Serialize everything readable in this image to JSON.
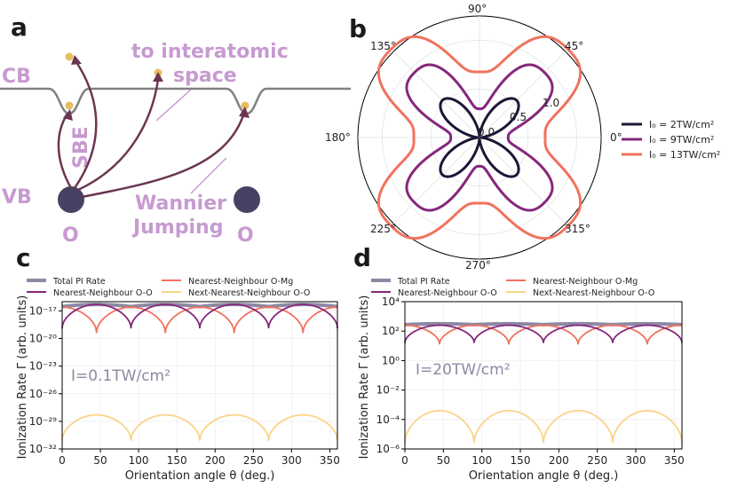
{
  "panel_a": {
    "letter": "a",
    "cb_label": "CB",
    "vb_label": "VB",
    "interatomic_label": [
      "to interatomic",
      "space"
    ],
    "sbe_label": "SBE",
    "wannier_label": [
      "Wannier",
      "Jumping"
    ],
    "o_label_left": "O",
    "o_label_right": "O",
    "colors": {
      "band": "#808080",
      "dot": "#e8bd60",
      "atom": "#474264",
      "arrow": "#6b3551",
      "annotation": "#c79ad0"
    }
  },
  "chart_data": [
    {
      "id": "b",
      "letter": "b",
      "type": "polar",
      "radial_ticks": [
        "0.0",
        "0.5",
        "1.0"
      ],
      "angle_ticks": [
        "0°",
        "45°",
        "90°",
        "135°",
        "180°",
        "225°",
        "270°",
        "315°"
      ],
      "rmax": 1.25,
      "series": [
        {
          "label": "I₀ = 2TW/cm²",
          "color": "#1c1636",
          "base": 0.28,
          "amp": 0.26
        },
        {
          "label": "I₀ = 9TW/cm²",
          "color": "#85277c",
          "base": 0.62,
          "amp": 0.36
        },
        {
          "label": "I₀ = 13TW/cm²",
          "color": "#f0725e",
          "base": 0.98,
          "amp": 0.34
        }
      ],
      "legend": [
        "I₀ = 2TW/cm²",
        "I₀ = 9TW/cm²",
        "I₀ = 13TW/cm²"
      ]
    },
    {
      "id": "c",
      "letter": "c",
      "type": "line",
      "yscale": "log",
      "xlim": [
        0,
        360
      ],
      "ylim_exp": [
        -32,
        -16
      ],
      "xticks": [
        "0",
        "50",
        "100",
        "150",
        "200",
        "250",
        "300",
        "350"
      ],
      "ytick_exps": [
        -17,
        -20,
        -23,
        -26,
        -29,
        -32
      ],
      "xlabel": "Orientation angle θ (deg.)",
      "ylabel": "Ionization Rate Γ (arb. units)",
      "annotation": "I=0.1TW/cm²",
      "legend": [
        "Total PI Rate",
        "Nearest-Neighbour O-Mg",
        "Nearest-Neighbour O-O",
        "Next-Nearest-Neighbour O-O"
      ],
      "series": [
        {
          "name": "Total PI Rate",
          "color": "#8d89a3",
          "max_exp": -16.3,
          "min_exp": -17.1
        },
        {
          "name": "Nearest-Neighbour O-Mg",
          "color": "#f0725e",
          "max_exp": -16.6,
          "min_exp": -19.4
        },
        {
          "name": "Nearest-Neighbour O-O",
          "color": "#85277c",
          "max_exp": -16.3,
          "min_exp": -18.9
        },
        {
          "name": "Next-Nearest-Neighbour O-O",
          "color": "#fbd38a",
          "max_exp": -28.3,
          "min_exp": -31.1
        }
      ]
    },
    {
      "id": "d",
      "letter": "d",
      "type": "line",
      "yscale": "log",
      "xlim": [
        0,
        360
      ],
      "ylim_exp": [
        -6,
        4
      ],
      "xticks": [
        "0",
        "50",
        "100",
        "150",
        "200",
        "250",
        "300",
        "350"
      ],
      "ytick_exps": [
        4,
        2,
        0,
        -2,
        -4,
        -6
      ],
      "xlabel": "Orientation angle θ (deg.)",
      "ylabel": "Ionization Rate Γ (arb. units)",
      "annotation": "I=20TW/cm²",
      "legend": [
        "Total PI Rate",
        "Nearest-Neighbour O-Mg",
        "Nearest-Neighbour O-O",
        "Next-Nearest-Neighbour O-O"
      ],
      "series": [
        {
          "name": "Total PI Rate",
          "color": "#8d89a3",
          "max_exp": 2.5,
          "min_exp": 2.3
        },
        {
          "name": "Nearest-Neighbour O-Mg",
          "color": "#f0725e",
          "max_exp": 2.4,
          "min_exp": 1.1
        },
        {
          "name": "Nearest-Neighbour O-O",
          "color": "#85277c",
          "max_exp": 2.4,
          "min_exp": 1.2
        },
        {
          "name": "Next-Nearest-Neighbour O-O",
          "color": "#fbd38a",
          "max_exp": -3.4,
          "min_exp": -5.6
        }
      ]
    }
  ]
}
